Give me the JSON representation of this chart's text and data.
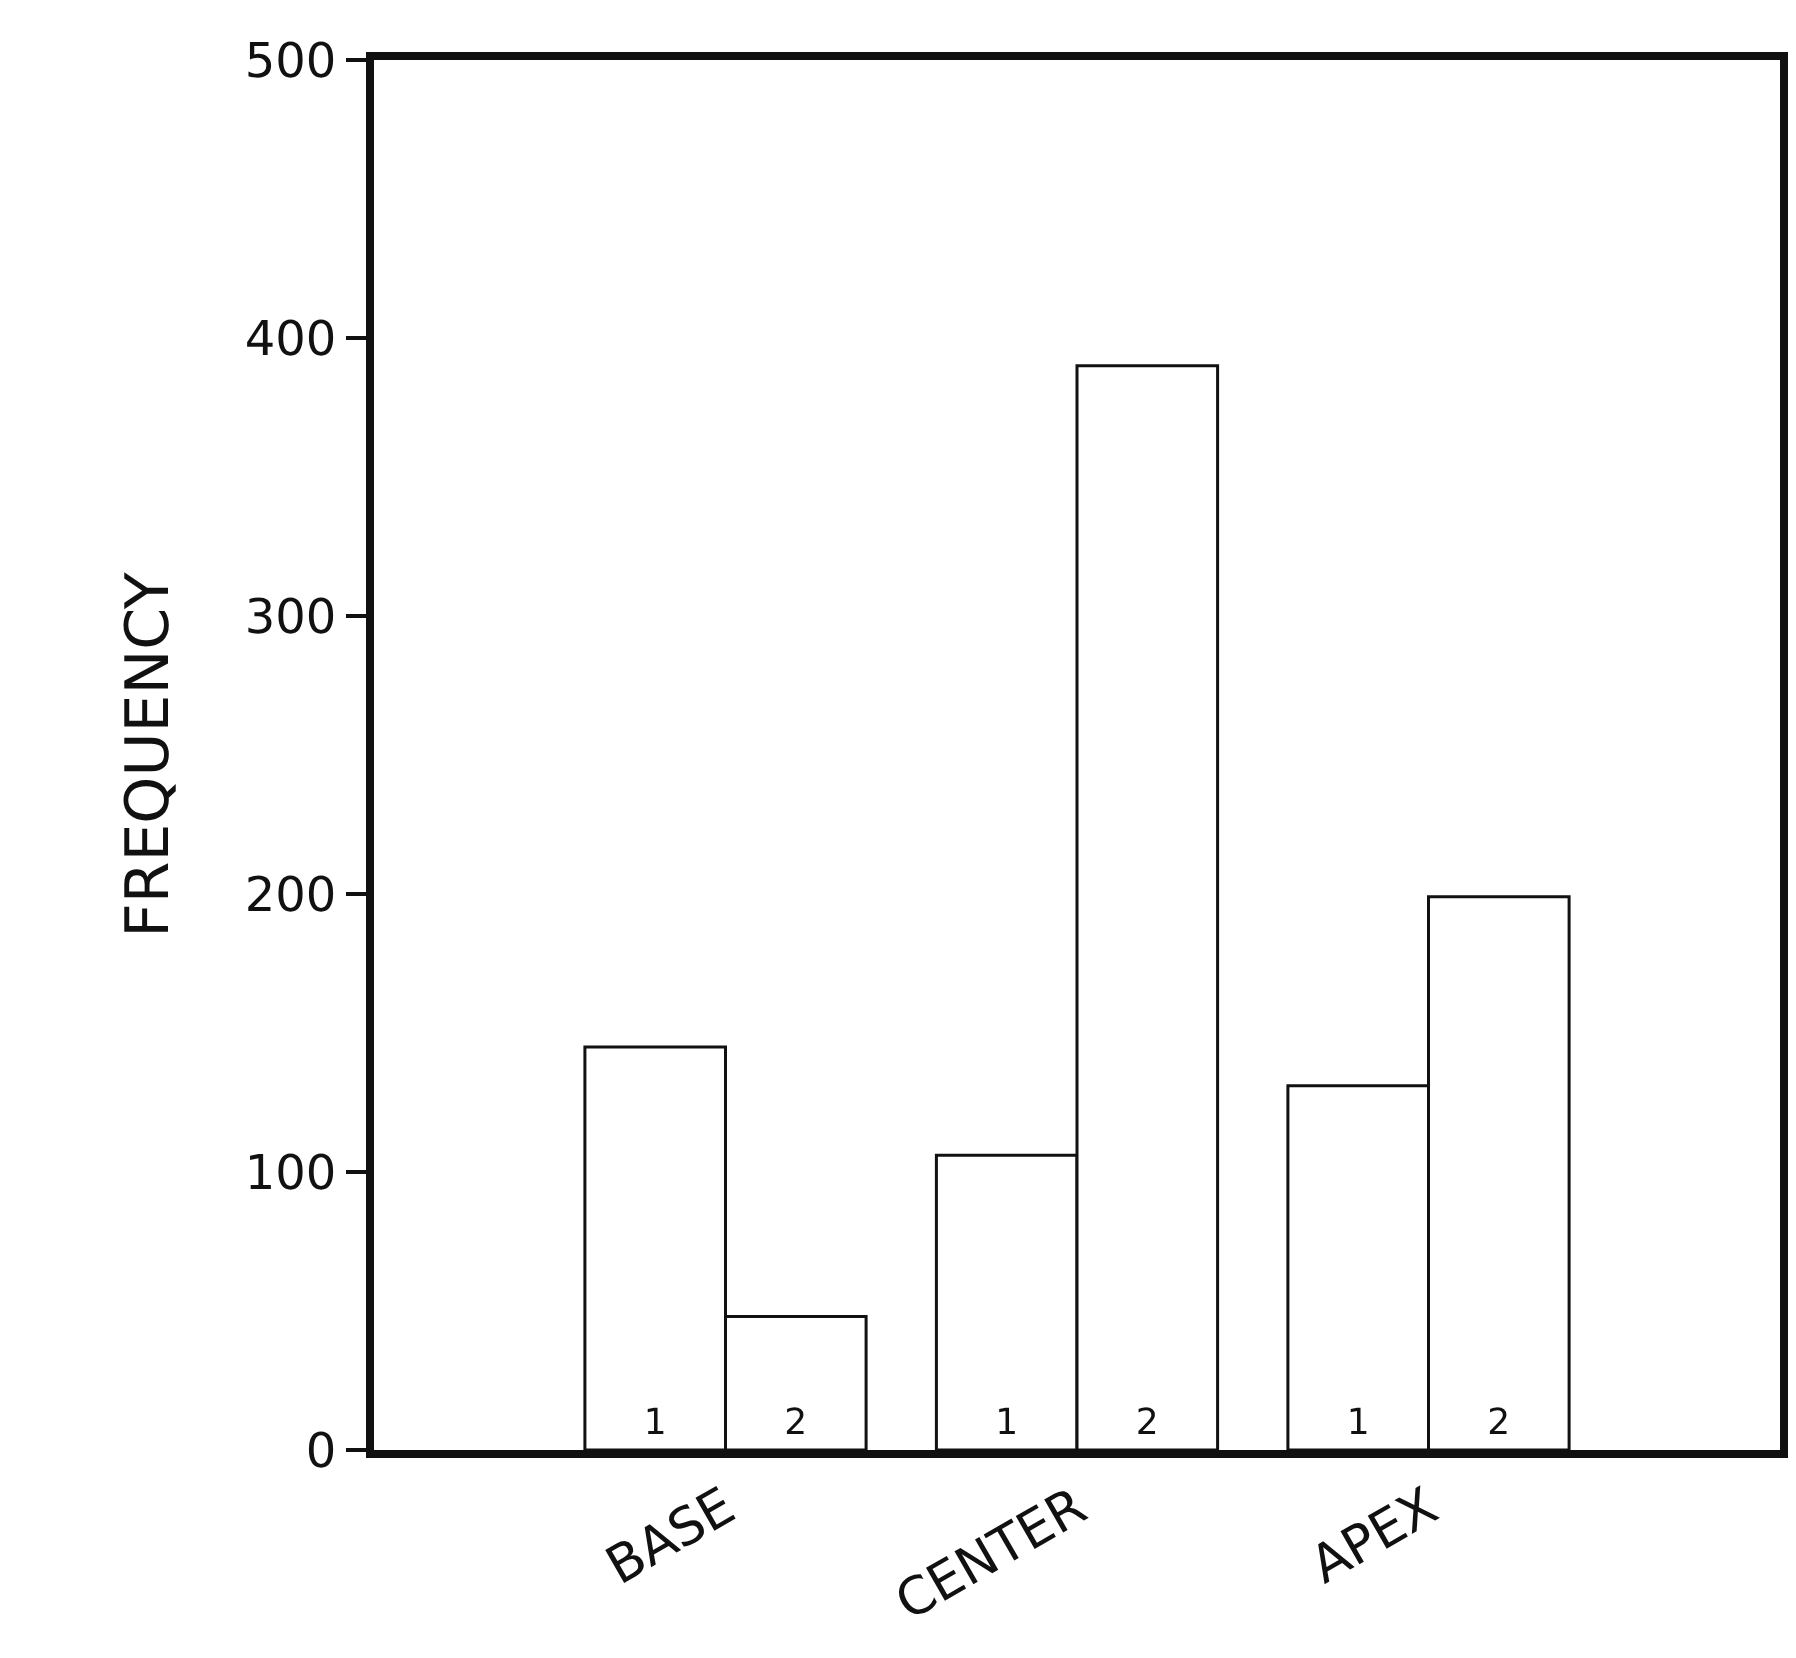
{
  "chart_data": {
    "type": "bar",
    "ylabel": "FREQUENCY",
    "categories": [
      "BASE",
      "CENTER",
      "APEX"
    ],
    "series": [
      {
        "name": "1",
        "color": "#ffffff",
        "values": [
          145,
          106,
          131
        ]
      },
      {
        "name": "2",
        "color": "#ffffff",
        "values": [
          48,
          390,
          199
        ]
      }
    ],
    "ylim": [
      0,
      500
    ],
    "yticks": [
      0,
      100,
      200,
      300,
      400,
      500
    ],
    "grid": false,
    "legend": false
  }
}
